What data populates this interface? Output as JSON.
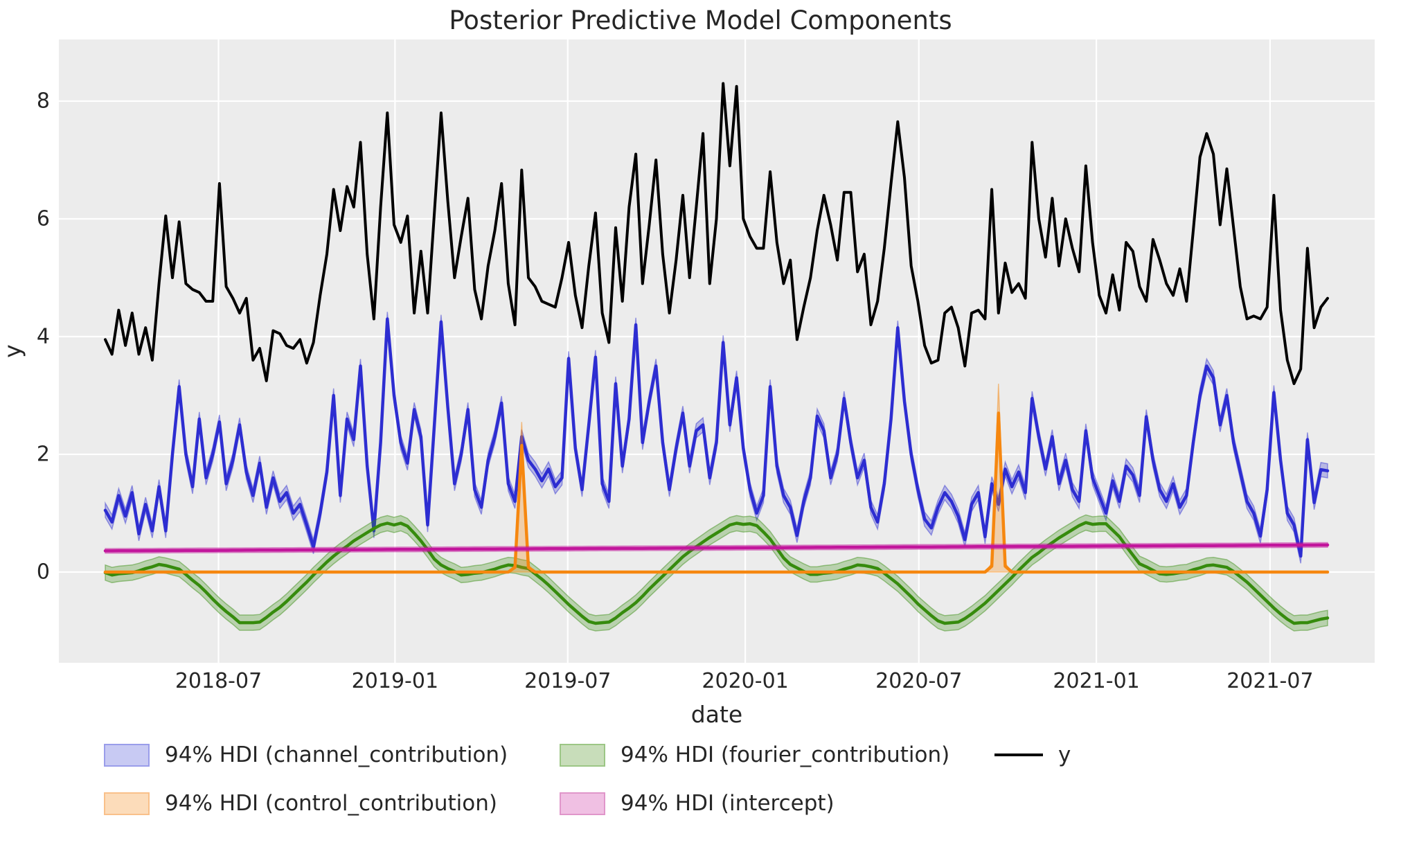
{
  "figure": {
    "title": "Posterior Predictive Model Components",
    "xlabel": "date",
    "ylabel": "y",
    "plot_background": "#ececec",
    "grid_color": "#ffffff",
    "text_color": "#262626"
  },
  "axes": {
    "y_ticks": [
      0,
      2,
      4,
      6,
      8
    ],
    "x_ticks": [
      {
        "label": "2018-07",
        "week": 16.86
      },
      {
        "label": "2019-01",
        "week": 43.14
      },
      {
        "label": "2019-07",
        "week": 68.86
      },
      {
        "label": "2020-01",
        "week": 95.29
      },
      {
        "label": "2020-07",
        "week": 121.14
      },
      {
        "label": "2021-01",
        "week": 147.57
      },
      {
        "label": "2021-07",
        "week": 173.43
      }
    ],
    "ylim": [
      -1.55,
      8.85
    ]
  },
  "chart_data": {
    "type": "line",
    "title": "Posterior Predictive Model Components",
    "xlabel": "date",
    "ylabel": "y",
    "x_start_date": "2018-03-05",
    "x_interval_days": 7,
    "n_points": 183,
    "series": [
      {
        "name": "94% HDI (channel_contribution)",
        "kind": "line_hdi",
        "color": "#2d2dd1",
        "band_alpha": 0.28,
        "hdi_halfwidth": 0.12,
        "values": [
          1.05,
          0.85,
          1.3,
          0.95,
          1.35,
          0.65,
          1.15,
          0.7,
          1.45,
          0.7,
          2.0,
          3.15,
          2.0,
          1.45,
          2.6,
          1.6,
          2.0,
          2.55,
          1.5,
          1.9,
          2.5,
          1.7,
          1.3,
          1.85,
          1.1,
          1.6,
          1.2,
          1.35,
          1.0,
          1.15,
          0.8,
          0.43,
          1.0,
          1.7,
          3.0,
          1.3,
          2.6,
          2.25,
          3.5,
          1.8,
          0.7,
          2.2,
          4.3,
          3.0,
          2.2,
          1.85,
          2.76,
          2.3,
          0.8,
          2.5,
          4.25,
          2.8,
          1.5,
          2.0,
          2.76,
          1.4,
          1.1,
          1.9,
          2.3,
          2.87,
          1.5,
          1.2,
          2.3,
          1.9,
          1.75,
          1.55,
          1.75,
          1.45,
          1.6,
          3.63,
          2.1,
          1.4,
          2.5,
          3.65,
          1.5,
          1.2,
          3.2,
          1.8,
          2.6,
          4.2,
          2.2,
          2.9,
          3.5,
          2.2,
          1.4,
          2.1,
          2.7,
          1.8,
          2.4,
          2.5,
          1.6,
          2.2,
          3.9,
          2.5,
          3.3,
          2.1,
          1.4,
          1.0,
          1.3,
          3.15,
          1.8,
          1.3,
          1.1,
          0.62,
          1.2,
          1.6,
          2.65,
          2.4,
          1.6,
          2.0,
          2.95,
          2.2,
          1.6,
          1.9,
          1.1,
          0.85,
          1.5,
          2.6,
          4.15,
          2.9,
          2.0,
          1.4,
          0.9,
          0.75,
          1.1,
          1.35,
          1.2,
          0.95,
          0.55,
          1.15,
          1.35,
          0.6,
          1.5,
          1.15,
          1.75,
          1.45,
          1.7,
          1.35,
          2.95,
          2.3,
          1.75,
          2.3,
          1.5,
          1.9,
          1.4,
          1.2,
          2.4,
          1.6,
          1.3,
          1.0,
          1.55,
          1.2,
          1.8,
          1.65,
          1.3,
          2.64,
          1.9,
          1.4,
          1.2,
          1.5,
          1.1,
          1.3,
          2.2,
          3.0,
          3.5,
          3.3,
          2.5,
          3.0,
          2.2,
          1.7,
          1.2,
          1.0,
          0.61,
          1.4,
          3.05,
          1.9,
          1.0,
          0.8,
          0.27,
          2.25,
          1.18,
          1.74,
          1.72
        ]
      },
      {
        "name": "94% HDI (control_contribution)",
        "kind": "line_hdi_sparse",
        "color": "#f6870f",
        "band_alpha": 0.3,
        "baseline": 0,
        "spikes": [
          {
            "week": 62,
            "value": 2.15,
            "band_value": 2.55,
            "shoulder": 0.08
          },
          {
            "week": 133,
            "value": 2.7,
            "band_value": 3.2,
            "shoulder": 0.1
          }
        ]
      },
      {
        "name": "94% HDI (fourier_contribution)",
        "kind": "line_hdi",
        "color": "#368b0d",
        "band_alpha": 0.28,
        "hdi_halfwidth": 0.13,
        "values": [
          -0.01,
          -0.05,
          -0.03,
          -0.02,
          -0.01,
          0.02,
          0.06,
          0.09,
          0.13,
          0.11,
          0.08,
          0.05,
          -0.04,
          -0.14,
          -0.23,
          -0.34,
          -0.46,
          -0.57,
          -0.67,
          -0.76,
          -0.86,
          -0.86,
          -0.86,
          -0.85,
          -0.77,
          -0.68,
          -0.6,
          -0.5,
          -0.39,
          -0.28,
          -0.17,
          -0.05,
          0.06,
          0.17,
          0.27,
          0.36,
          0.44,
          0.53,
          0.6,
          0.67,
          0.74,
          0.8,
          0.83,
          0.8,
          0.83,
          0.78,
          0.66,
          0.53,
          0.38,
          0.22,
          0.12,
          0.06,
          0.01,
          -0.05,
          -0.04,
          -0.02,
          -0.01,
          0.02,
          0.05,
          0.09,
          0.12,
          0.11,
          0.08,
          0.06,
          -0.03,
          -0.12,
          -0.22,
          -0.33,
          -0.44,
          -0.55,
          -0.65,
          -0.75,
          -0.84,
          -0.87,
          -0.86,
          -0.85,
          -0.78,
          -0.69,
          -0.61,
          -0.52,
          -0.41,
          -0.29,
          -0.18,
          -0.07,
          0.04,
          0.15,
          0.26,
          0.35,
          0.43,
          0.51,
          0.59,
          0.66,
          0.73,
          0.8,
          0.83,
          0.81,
          0.82,
          0.79,
          0.68,
          0.56,
          0.4,
          0.24,
          0.13,
          0.07,
          0.01,
          -0.04,
          -0.04,
          -0.02,
          -0.01,
          0.01,
          0.05,
          0.08,
          0.12,
          0.11,
          0.09,
          0.06,
          -0.02,
          -0.11,
          -0.2,
          -0.31,
          -0.42,
          -0.54,
          -0.64,
          -0.74,
          -0.83,
          -0.87,
          -0.86,
          -0.85,
          -0.79,
          -0.71,
          -0.62,
          -0.53,
          -0.42,
          -0.31,
          -0.2,
          -0.09,
          0.03,
          0.14,
          0.25,
          0.33,
          0.42,
          0.5,
          0.58,
          0.65,
          0.72,
          0.79,
          0.84,
          0.81,
          0.82,
          0.82,
          0.71,
          0.6,
          0.44,
          0.29,
          0.14,
          0.09,
          0.03,
          -0.03,
          -0.04,
          -0.03,
          -0.01,
          0.0,
          0.04,
          0.07,
          0.11,
          0.12,
          0.1,
          0.08,
          0.01,
          -0.08,
          -0.17,
          -0.28,
          -0.39,
          -0.5,
          -0.61,
          -0.71,
          -0.8,
          -0.87,
          -0.86,
          -0.86,
          -0.83,
          -0.8,
          -0.78
        ]
      },
      {
        "name": "94% HDI (intercept)",
        "kind": "line_hdi_linear",
        "color": "#c2169c",
        "band_alpha": 0.3,
        "hdi_halfwidth": 0.04,
        "linear": {
          "start": 0.36,
          "end": 0.46
        }
      },
      {
        "name": "y",
        "kind": "line",
        "color": "#000000",
        "values": [
          3.95,
          3.7,
          4.45,
          3.85,
          4.4,
          3.7,
          4.15,
          3.6,
          4.9,
          6.05,
          5.0,
          5.95,
          4.9,
          4.8,
          4.75,
          4.6,
          4.6,
          6.6,
          4.85,
          4.65,
          4.4,
          4.65,
          3.6,
          3.8,
          3.25,
          4.1,
          4.05,
          3.85,
          3.8,
          3.95,
          3.55,
          3.9,
          4.7,
          5.4,
          6.5,
          5.8,
          6.55,
          6.2,
          7.3,
          5.4,
          4.3,
          6.2,
          7.8,
          5.9,
          5.6,
          6.05,
          4.4,
          5.45,
          4.4,
          6.1,
          7.8,
          6.3,
          5.0,
          5.7,
          6.35,
          4.8,
          4.3,
          5.2,
          5.8,
          6.6,
          4.9,
          4.2,
          6.83,
          5.0,
          4.85,
          4.6,
          4.55,
          4.5,
          5.0,
          5.6,
          4.7,
          4.15,
          5.2,
          6.1,
          4.4,
          3.9,
          5.85,
          4.6,
          6.2,
          7.1,
          4.9,
          5.9,
          7.0,
          5.4,
          4.4,
          5.3,
          6.4,
          5.0,
          6.2,
          7.45,
          4.9,
          6.0,
          8.3,
          6.9,
          8.25,
          6.0,
          5.7,
          5.5,
          5.5,
          6.8,
          5.6,
          4.9,
          5.3,
          3.95,
          4.5,
          5.0,
          5.8,
          6.4,
          5.9,
          5.3,
          6.45,
          6.45,
          5.1,
          5.4,
          4.2,
          4.6,
          5.5,
          6.6,
          7.65,
          6.7,
          5.2,
          4.6,
          3.85,
          3.55,
          3.6,
          4.4,
          4.5,
          4.15,
          3.5,
          4.4,
          4.45,
          4.3,
          6.5,
          4.4,
          5.25,
          4.75,
          4.9,
          4.65,
          7.3,
          6.0,
          5.35,
          6.35,
          5.2,
          6.0,
          5.5,
          5.1,
          6.9,
          5.6,
          4.7,
          4.4,
          5.05,
          4.45,
          5.6,
          5.45,
          4.85,
          4.6,
          5.65,
          5.3,
          4.9,
          4.7,
          5.15,
          4.6,
          5.8,
          7.05,
          7.45,
          7.1,
          5.9,
          6.85,
          5.85,
          4.85,
          4.3,
          4.35,
          4.3,
          4.5,
          6.4,
          4.45,
          3.6,
          3.2,
          3.45,
          5.5,
          4.15,
          4.5,
          4.65
        ]
      }
    ],
    "legend_position": "below",
    "grid": true
  },
  "legend": {
    "items": [
      {
        "label": "94% HDI (channel_contribution)",
        "type": "patch",
        "fill": "#c8caf3",
        "edge": "#9a9dea",
        "column": 0
      },
      {
        "label": "94% HDI (control_contribution)",
        "type": "patch",
        "fill": "#fcdcba",
        "edge": "#f9c08a",
        "column": 0
      },
      {
        "label": "94% HDI (fourier_contribution)",
        "type": "patch",
        "fill": "#c8ddba",
        "edge": "#9cc685",
        "column": 1
      },
      {
        "label": "94% HDI (intercept)",
        "type": "patch",
        "fill": "#f0c0e3",
        "edge": "#e096ca",
        "column": 1
      },
      {
        "label": "y",
        "type": "line",
        "color": "#000000",
        "column": 2
      }
    ]
  }
}
